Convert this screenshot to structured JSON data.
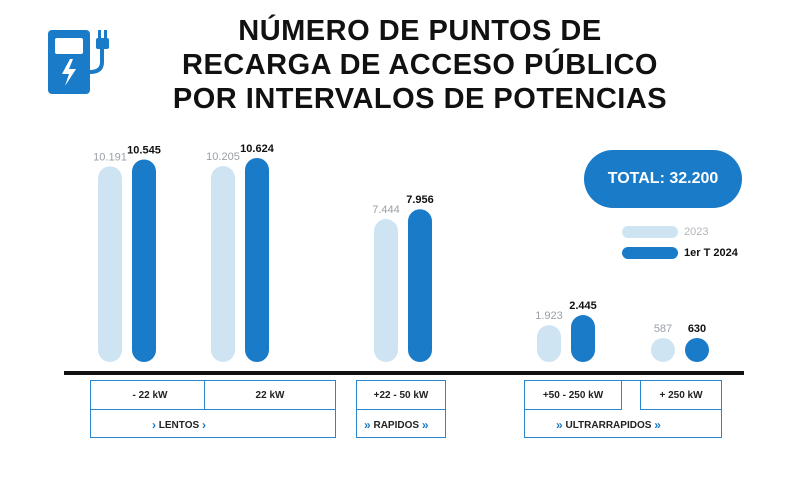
{
  "title_lines": [
    "NÚMERO DE PUNTOS DE",
    "RECARGA DE ACCESO PÚBLICO",
    "POR INTERVALOS DE POTENCIAS"
  ],
  "total_label": "TOTAL: 32.200",
  "colors": {
    "light": "#cfe4f3",
    "dark": "#1a7bc9",
    "axis": "#111111"
  },
  "icon": "ev-charger-icon",
  "legend": [
    {
      "label": "2023",
      "color": "#cfe4f3"
    },
    {
      "label": "1er T 2024",
      "color": "#1a7bc9"
    }
  ],
  "groups": [
    {
      "label": "LENTOS",
      "chevrons": "›"
    },
    {
      "label": "RAPIDOS",
      "chevrons": "»"
    },
    {
      "label": "ULTRARRAPIDOS",
      "chevrons": "»"
    }
  ],
  "chart_data": {
    "type": "bar",
    "categories": [
      "- 22 kW",
      "22 kW",
      "+22 - 50 kW",
      "+50 - 250 kW",
      "+ 250 kW"
    ],
    "series": [
      {
        "name": "2023",
        "values": [
          10191,
          10205,
          7444,
          1923,
          587
        ],
        "labels": [
          "10.191",
          "10.205",
          "7.444",
          "1.923",
          "587"
        ]
      },
      {
        "name": "1er T 2024",
        "values": [
          10545,
          10624,
          7956,
          2445,
          630
        ],
        "labels": [
          "10.545",
          "10.624",
          "7.956",
          "2.445",
          "630"
        ]
      }
    ],
    "title": "NÚMERO DE PUNTOS DE RECARGA DE ACCESO PÚBLICO POR INTERVALOS DE POTENCIAS",
    "ylim": [
      0,
      11000
    ]
  }
}
